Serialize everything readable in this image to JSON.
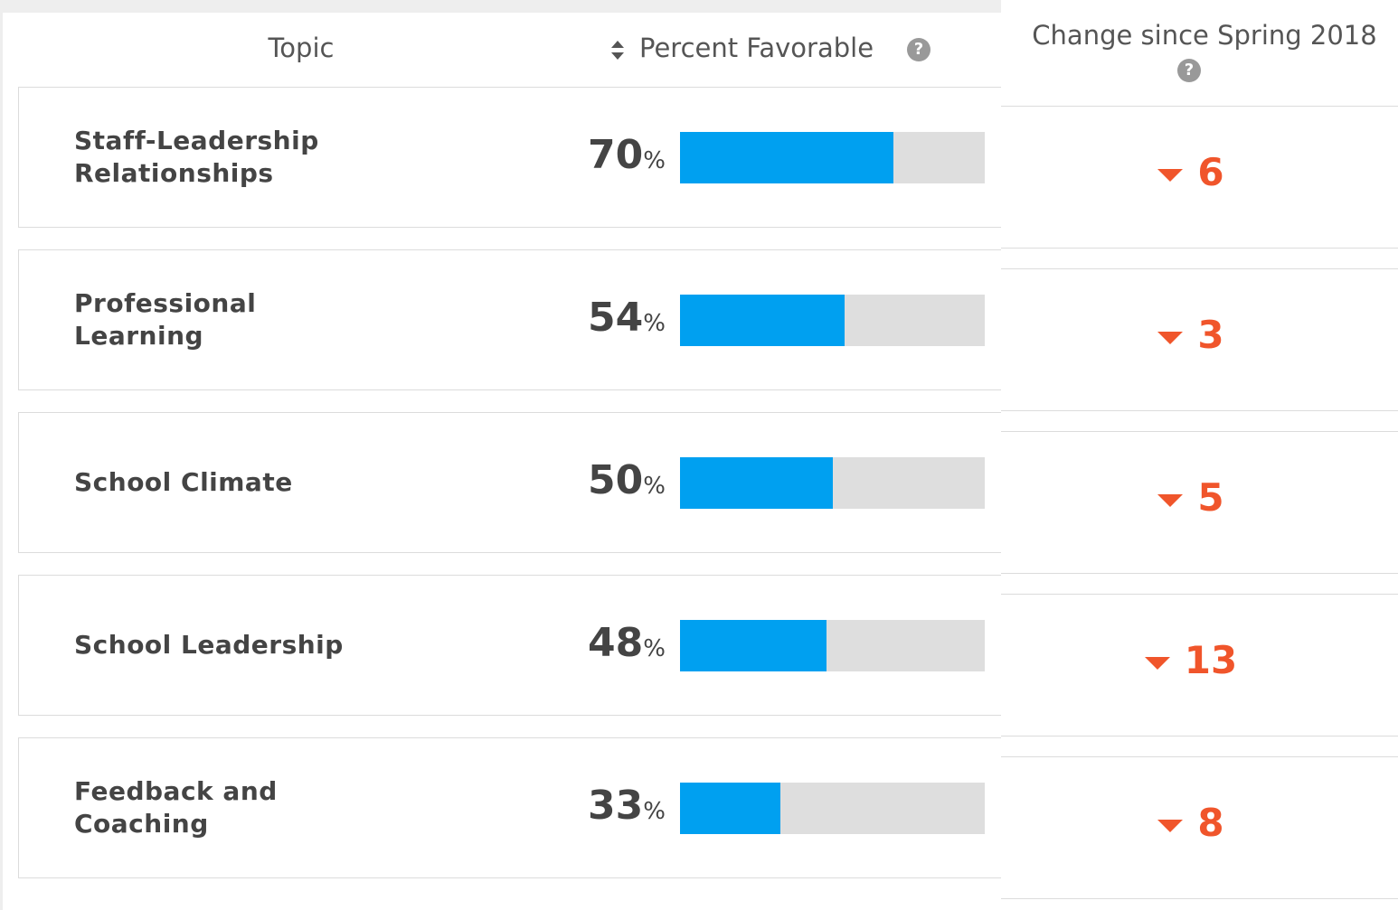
{
  "header": {
    "topic": "Topic",
    "percent": "Percent Favorable",
    "change": "Change since Spring 2018"
  },
  "percent_unit": "%",
  "percent_range": [
    0,
    100
  ],
  "change_direction": "down",
  "rows": [
    {
      "topic": "Staff-Leadership Relationships",
      "percent": 70,
      "change": 6
    },
    {
      "topic": "Professional Learning",
      "percent": 54,
      "change": 3
    },
    {
      "topic": "School Climate",
      "percent": 50,
      "change": 5
    },
    {
      "topic": "School Leadership",
      "percent": 48,
      "change": 13
    },
    {
      "topic": "Feedback and Coaching",
      "percent": 33,
      "change": 8
    }
  ]
}
